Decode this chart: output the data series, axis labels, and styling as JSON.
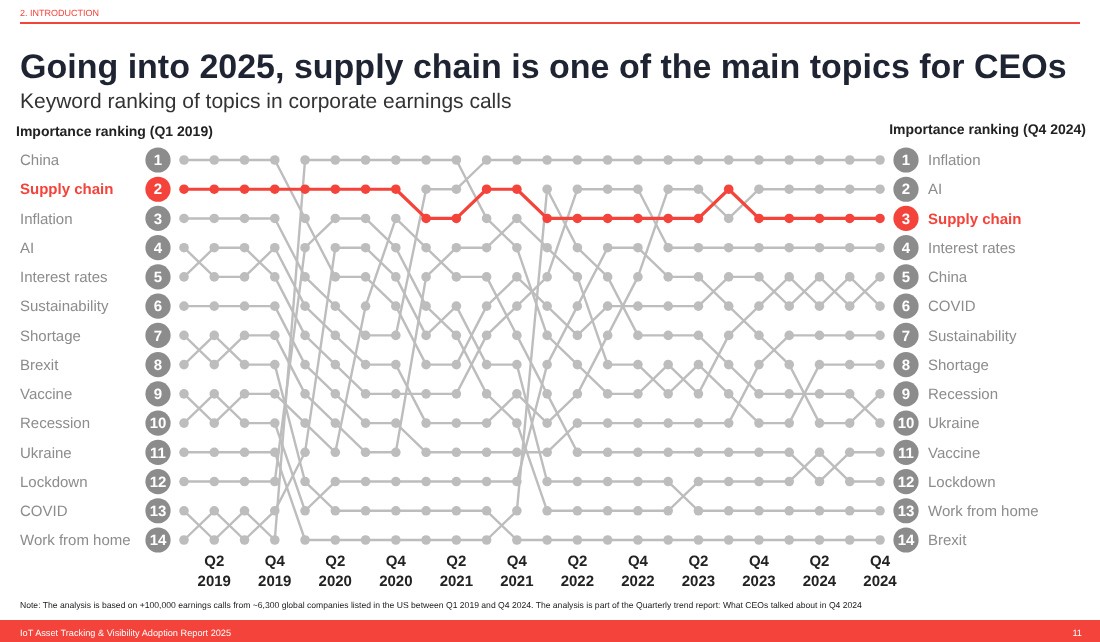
{
  "chart_data": {
    "type": "line",
    "title": "Going into 2025, supply chain is one of the main topics for CEOs",
    "subtitle": "Keyword ranking of topics in corporate earnings calls",
    "ylabel": "Importance ranking (Q1 2019)",
    "y2label": "Importance ranking (Q4 2024)",
    "categories": [
      null,
      "Q2 2019",
      null,
      "Q4 2019",
      null,
      "Q2 2020",
      null,
      "Q4 2020",
      null,
      "Q2 2021",
      null,
      "Q4 2021",
      null,
      "Q2 2022",
      null,
      "Q4 2022",
      null,
      "Q2 2023",
      null,
      "Q4 2023",
      null,
      "Q2 2024",
      null,
      "Q4 2024"
    ],
    "ylim": [
      14,
      1
    ],
    "yticks": [
      1,
      2,
      3,
      4,
      5,
      6,
      7,
      8,
      9,
      10,
      11,
      12,
      13,
      14
    ],
    "y2lim": [
      14,
      1
    ],
    "y2ticks": [
      1,
      2,
      3,
      4,
      5,
      6,
      7,
      8,
      9,
      10,
      11,
      12,
      13,
      14
    ],
    "marker": "circle",
    "legend": "right",
    "grid": false,
    "series": [
      {
        "name": "China",
        "color": "#bdbdbd",
        "values": [
          1,
          1,
          1,
          1,
          3,
          5,
          5,
          6,
          8,
          8,
          6,
          5,
          6,
          7,
          6,
          6,
          6,
          6,
          5,
          5,
          6,
          5,
          6,
          5
        ]
      },
      {
        "name": "Supply chain",
        "color": "#f4433b",
        "values": [
          2,
          2,
          2,
          2,
          2,
          2,
          2,
          2,
          3,
          3,
          2,
          2,
          3,
          3,
          3,
          3,
          3,
          3,
          2,
          3,
          3,
          3,
          3,
          3
        ]
      },
      {
        "name": "Inflation",
        "color": "#bdbdbd",
        "values": [
          3,
          3,
          3,
          3,
          5,
          6,
          7,
          7,
          2,
          2,
          1,
          1,
          1,
          1,
          1,
          1,
          1,
          1,
          1,
          1,
          1,
          1,
          1,
          1
        ]
      },
      {
        "name": "AI",
        "color": "#bdbdbd",
        "values": [
          4,
          5,
          5,
          4,
          6,
          7,
          8,
          8,
          10,
          10,
          10,
          9,
          10,
          9,
          7,
          5,
          2,
          2,
          3,
          2,
          2,
          2,
          2,
          2
        ]
      },
      {
        "name": "Interest rates",
        "color": "#bdbdbd",
        "values": [
          5,
          4,
          4,
          5,
          7,
          8,
          9,
          9,
          9,
          9,
          7,
          6,
          5,
          2,
          2,
          2,
          4,
          4,
          4,
          4,
          4,
          4,
          4,
          4
        ]
      },
      {
        "name": "Sustainability",
        "color": "#bdbdbd",
        "values": [
          6,
          6,
          6,
          6,
          8,
          9,
          10,
          10,
          11,
          11,
          11,
          11,
          11,
          10,
          10,
          10,
          10,
          10,
          10,
          8,
          7,
          7,
          7,
          7
        ]
      },
      {
        "name": "Shortage",
        "color": "#bdbdbd",
        "values": [
          7,
          8,
          7,
          7,
          9,
          10,
          11,
          11,
          5,
          4,
          4,
          3,
          4,
          5,
          8,
          8,
          9,
          8,
          9,
          10,
          10,
          8,
          8,
          8
        ]
      },
      {
        "name": "Brexit",
        "color": "#bdbdbd",
        "values": [
          8,
          7,
          8,
          8,
          12,
          13,
          13,
          13,
          13,
          13,
          13,
          14,
          14,
          14,
          14,
          14,
          14,
          14,
          14,
          14,
          14,
          14,
          14,
          14
        ]
      },
      {
        "name": "Vaccine",
        "color": "#bdbdbd",
        "values": [
          9,
          10,
          9,
          9,
          10,
          11,
          6,
          3,
          4,
          5,
          5,
          7,
          9,
          11,
          11,
          11,
          11,
          11,
          11,
          11,
          11,
          12,
          11,
          11
        ]
      },
      {
        "name": "Recession",
        "color": "#bdbdbd",
        "values": [
          10,
          9,
          10,
          10,
          13,
          12,
          12,
          12,
          12,
          12,
          12,
          12,
          8,
          6,
          4,
          4,
          5,
          5,
          6,
          7,
          8,
          10,
          10,
          9
        ]
      },
      {
        "name": "Ukraine",
        "color": "#bdbdbd",
        "values": [
          11,
          11,
          11,
          11,
          14,
          14,
          14,
          14,
          14,
          14,
          14,
          13,
          2,
          4,
          5,
          7,
          7,
          7,
          8,
          9,
          9,
          9,
          9,
          10
        ]
      },
      {
        "name": "Lockdown",
        "color": "#bdbdbd",
        "values": [
          12,
          12,
          12,
          12,
          4,
          3,
          3,
          4,
          6,
          7,
          9,
          10,
          13,
          13,
          13,
          13,
          13,
          12,
          12,
          12,
          12,
          11,
          12,
          12
        ]
      },
      {
        "name": "COVID",
        "color": "#bdbdbd",
        "values": [
          13,
          14,
          13,
          14,
          1,
          1,
          1,
          1,
          1,
          1,
          3,
          4,
          7,
          8,
          9,
          9,
          8,
          9,
          7,
          6,
          5,
          6,
          5,
          6
        ]
      },
      {
        "name": "Work from home",
        "color": "#bdbdbd",
        "values": [
          14,
          13,
          14,
          13,
          11,
          4,
          4,
          5,
          7,
          6,
          8,
          8,
          12,
          12,
          12,
          12,
          12,
          13,
          13,
          13,
          13,
          13,
          13,
          13
        ]
      }
    ],
    "annotations": [
      "2. INTRODUCTION",
      "Note: The analysis is based on +100,000 earnings calls from ~6,300 global companies listed in the US between Q1 2019 and Q4 2024. The analysis is part of the Quarterly trend report: What CEOs talked about in Q4 2024",
      "IoT Asset Tracking & Visibility Adoption Report 2025",
      "11"
    ]
  }
}
